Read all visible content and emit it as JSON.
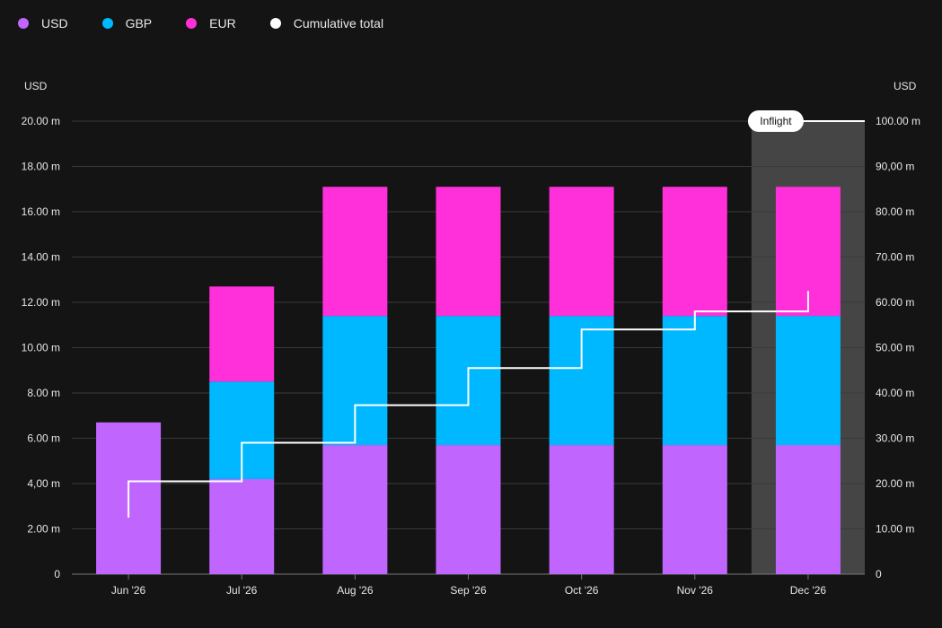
{
  "legend": [
    {
      "name": "USD",
      "color": "#c066ff"
    },
    {
      "name": "GBP",
      "color": "#00b8ff"
    },
    {
      "name": "EUR",
      "color": "#ff2fd9"
    },
    {
      "name": "Cumulative total",
      "color": "#ffffff"
    }
  ],
  "left_axis": {
    "unit": "USD",
    "ticks": [
      "0",
      "2.00 m",
      "4,00 m",
      "6.00 m",
      "8.00 m",
      "10.00 m",
      "12.00 m",
      "14.00 m",
      "16.00 m",
      "18.00 m",
      "20.00 m"
    ]
  },
  "right_axis": {
    "unit": "USD",
    "ticks": [
      "0",
      "10.00 m",
      "20.00 m",
      "30.00 m",
      "40.00 m",
      "50.00 m",
      "60.00 m",
      "70.00 m",
      "80.00 m",
      "90,00 m",
      "100.00 m"
    ]
  },
  "highlight_label": "Inflight",
  "chart_data": {
    "type": "bar",
    "stacked": true,
    "categories": [
      "Jun '26",
      "Jul '26",
      "Aug '26",
      "Sep '26",
      "Oct '26",
      "Nov '26",
      "Dec '26"
    ],
    "series": [
      {
        "name": "USD",
        "axis": "left",
        "color": "#c066ff",
        "values": [
          6.7,
          4.2,
          5.7,
          5.7,
          5.7,
          5.7,
          5.7
        ]
      },
      {
        "name": "GBP",
        "axis": "left",
        "color": "#00b8ff",
        "values": [
          0,
          4.3,
          5.7,
          5.7,
          5.7,
          5.7,
          5.7
        ]
      },
      {
        "name": "EUR",
        "axis": "left",
        "color": "#ff2fd9",
        "values": [
          0,
          4.2,
          5.7,
          5.7,
          5.7,
          5.7,
          5.7
        ]
      },
      {
        "name": "Cumulative total",
        "axis": "right",
        "type": "line-step",
        "color": "#ffffff",
        "values": [
          20.5,
          29,
          37.3,
          45.5,
          54,
          58,
          58
        ]
      }
    ],
    "cumulative_start": 12.5,
    "cumulative_end": 62.5,
    "ylim_left": [
      0,
      20
    ],
    "ylim_right": [
      0,
      100
    ],
    "highlighted_category": "Dec '26",
    "grid": true,
    "legend_position": "top-left"
  }
}
